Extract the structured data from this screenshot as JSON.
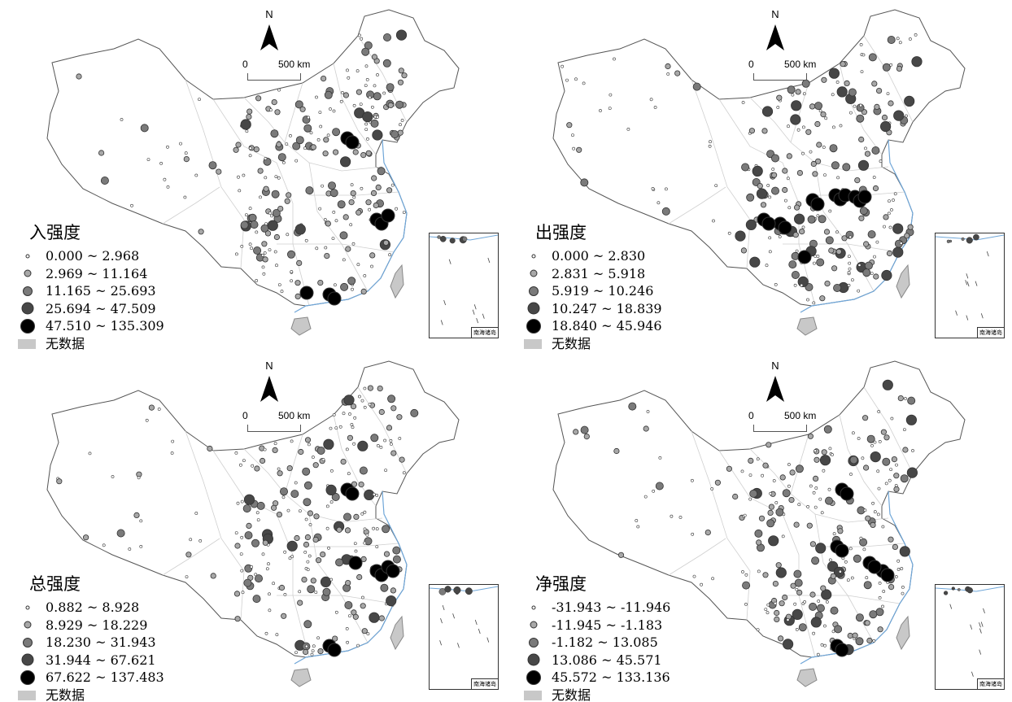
{
  "compass": {
    "north_label": "N"
  },
  "scale": {
    "zero": "0",
    "distance": "500 km"
  },
  "inset": {
    "label": "南海诸岛"
  },
  "no_data_label": "无数据",
  "symbol_colors": [
    "#ffffff",
    "#a8a8a8",
    "#7a7a7a",
    "#474747",
    "#000000"
  ],
  "no_data_color": "#c8c8c8",
  "panels": [
    {
      "title": "入强度",
      "classes": [
        "0.000 ~ 2.968",
        "2.969 ~ 11.164",
        "11.165 ~ 25.693",
        "25.694 ~ 47.509",
        "47.510 ~ 135.309"
      ]
    },
    {
      "title": "出强度",
      "classes": [
        "0.000 ~ 2.830",
        "2.831 ~ 5.918",
        "5.919 ~ 10.246",
        "10.247 ~ 18.839",
        "18.840 ~ 45.946"
      ]
    },
    {
      "title": "总强度",
      "classes": [
        "0.882 ~ 8.928",
        "8.929 ~ 18.229",
        "18.230 ~ 31.943",
        "31.944 ~ 67.621",
        "67.622 ~ 137.483"
      ]
    },
    {
      "title": "净强度",
      "classes": [
        "-31.943 ~ -11.946",
        "-11.945 ~ -1.183",
        "-1.182 ~ 13.085",
        "13.086 ~ 45.571",
        "45.572 ~ 133.136"
      ]
    }
  ]
}
